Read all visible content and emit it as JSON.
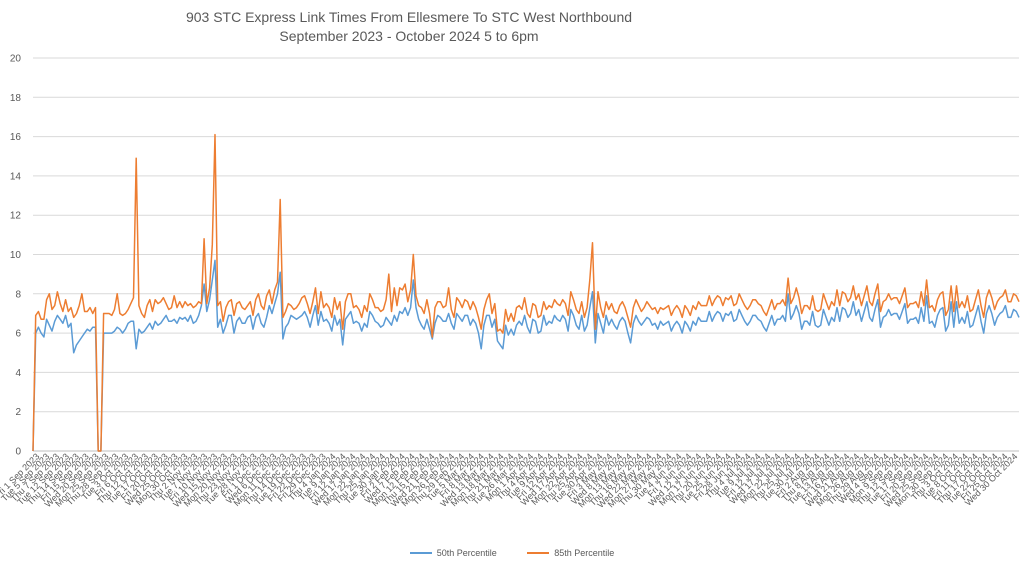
{
  "chart_data": {
    "type": "line",
    "title": "903 STC Express Link Times From Ellesmere To STC West Northbound",
    "subtitle": "September 2023 - October 2024 5 to 6pm",
    "xlabel": "",
    "ylabel": "",
    "ylim": [
      0,
      20
    ],
    "yticks": [
      0,
      2,
      4,
      6,
      8,
      10,
      12,
      14,
      16,
      18,
      20
    ],
    "grid": true,
    "legend_position": "bottom",
    "x_tick_labels": [
      "Fri 1 Sep 2023",
      "Tue 5 Sep 2023",
      "Thu 7 Sep 2023",
      "Tue 12 Sep 2023",
      "Thu 14 Sep 2023",
      "Fri 15 Sep 2023",
      "Wed 20 Sep 2023",
      "Mon 25 Sep 2023",
      "Thu 28 Sep 2023",
      "Tue 3 Oct 2023",
      "Fri 6 Oct 2023",
      "Thu 12 Oct 2023",
      "Tue 17 Oct 2023",
      "Fri 20 Oct 2023",
      "Wed 25 Oct 2023",
      "Mon 30 Oct 2023",
      "Thu 2 Nov 2023",
      "Tue 7 Nov 2023",
      "Fri 10 Nov 2023",
      "Wed 15 Nov 2023",
      "Mon 20 Nov 2023",
      "Thu 23 Nov 2023",
      "Tue 28 Nov 2023",
      "Fri 1 Dec 2023",
      "Wed 6 Dec 2023",
      "Mon 11 Dec 2023",
      "Thu 14 Dec 2023",
      "Tue 19 Dec 2023",
      "Fri 22 Dec 2023",
      "Fri 29 Dec 2023",
      "Thu 4 Jan 2024",
      "Tue 9 Jan 2024",
      "Fri 12 Jan 2024",
      "Wed 17 Jan 2024",
      "Mon 22 Jan 2024",
      "Thu 25 Jan 2024",
      "Tue 30 Jan 2024",
      "Fri 2 Feb 2024",
      "Wed 7 Feb 2024",
      "Mon 12 Feb 2024",
      "Thu 15 Feb 2024",
      "Wed 21 Feb 2024",
      "Mon 26 Feb 2024",
      "Thu 29 Feb 2024",
      "Tue 5 Mar 2024",
      "Fri 8 Mar 2024",
      "Wed 13 Mar 2024",
      "Mon 18 Mar 2024",
      "Thu 21 Mar 2024",
      "Tue 26 Mar 2024",
      "Mon 1 Apr 2024",
      "Thu 4 Apr 2024",
      "Tue 9 Apr 2024",
      "Fri 12 Apr 2024",
      "Wed 17 Apr 2024",
      "Mon 22 Apr 2024",
      "Thu 25 Apr 2024",
      "Tue 30 Apr 2024",
      "Fri 3 May 2024",
      "Wed 8 May 2024",
      "Mon 13 May 2024",
      "Thu 16 May 2024",
      "Wed 22 May 2024",
      "Mon 27 May 2024",
      "Thu 30 May 2024",
      "Tue 4 Jun 2024",
      "Fri 7 Jun 2024",
      "Wed 12 Jun 2024",
      "Mon 17 Jun 2024",
      "Thu 20 Jun 2024",
      "Tue 25 Jun 2024",
      "Fri 28 Jun 2024",
      "Thu 4 Jul 2024",
      "Tue 9 Jul 2024",
      "Fri 12 Jul 2024",
      "Wed 17 Jul 2024",
      "Mon 22 Jul 2024",
      "Thu 25 Jul 2024",
      "Tue 30 Jul 2024",
      "Fri 2 Aug 2024",
      "Thu 8 Aug 2024",
      "Tue 13 Aug 2024",
      "Fri 16 Aug 2024",
      "Wed 21 Aug 2024",
      "Mon 26 Aug 2024",
      "Thu 29 Aug 2024",
      "Wed 4 Sep 2024",
      "Mon 9 Sep 2024",
      "Thu 12 Sep 2024",
      "Tue 17 Sep 2024",
      "Fri 20 Sep 2024",
      "Wed 25 Sep 2024",
      "Mon 30 Sep 2024",
      "Thu 3 Oct 2024",
      "Tue 8 Oct 2024",
      "Fri 11 Oct 2024",
      "Thu 17 Oct 2024",
      "Tue 22 Oct 2024",
      "Fri 25 Oct 2024",
      "Wed 30 Oct 2024"
    ],
    "series": [
      {
        "name": "50th Percentile",
        "color": "#5B9BD5",
        "values": [
          0,
          6.0,
          6.3,
          6.0,
          5.8,
          6.7,
          6.4,
          6.1,
          6.6,
          6.9,
          6.7,
          6.5,
          6.9,
          6.3,
          6.5,
          5.0,
          5.4,
          5.6,
          5.8,
          6.0,
          6.2,
          6.1,
          6.3,
          6.3,
          0,
          0,
          6.0,
          6.0,
          6.0,
          6.0,
          6.1,
          6.3,
          6.2,
          6.0,
          6.2,
          6.5,
          6.6,
          6.6,
          5.2,
          6.2,
          6.0,
          6.1,
          6.3,
          6.5,
          6.2,
          6.6,
          6.4,
          6.5,
          6.7,
          6.9,
          6.6,
          6.6,
          6.7,
          6.5,
          6.8,
          6.7,
          6.8,
          6.6,
          6.9,
          6.5,
          6.6,
          6.9,
          7.4,
          8.5,
          7.1,
          7.7,
          8.7,
          9.7,
          6.3,
          6.7,
          6.0,
          6.4,
          6.9,
          6.9,
          6.0,
          6.6,
          6.8,
          6.5,
          6.5,
          6.8,
          6.9,
          6.2,
          6.8,
          7.0,
          6.5,
          6.3,
          6.8,
          7.4,
          7.0,
          7.5,
          8.0,
          9.1,
          5.7,
          6.3,
          6.5,
          6.9,
          6.8,
          6.7,
          6.8,
          6.9,
          7.1,
          6.8,
          6.3,
          6.9,
          7.4,
          6.4,
          7.1,
          6.6,
          6.7,
          6.5,
          6.1,
          6.9,
          6.4,
          6.7,
          5.4,
          6.7,
          6.9,
          7.1,
          6.5,
          6.6,
          6.5,
          6.1,
          6.5,
          6.3,
          7.1,
          6.9,
          6.6,
          6.5,
          6.3,
          6.4,
          6.8,
          6.6,
          6.4,
          6.9,
          6.6,
          7.1,
          7.0,
          7.3,
          6.9,
          7.3,
          8.7,
          7.3,
          6.7,
          6.4,
          6.2,
          6.7,
          6.2,
          5.7,
          6.5,
          6.9,
          6.8,
          6.6,
          6.6,
          7.0,
          6.5,
          6.2,
          7.0,
          6.8,
          6.6,
          6.9,
          6.9,
          6.4,
          6.7,
          6.5,
          6.0,
          5.2,
          6.4,
          6.9,
          6.9,
          6.3,
          6.7,
          5.6,
          5.4,
          5.2,
          6.4,
          5.9,
          6.2,
          5.9,
          6.4,
          6.6,
          6.4,
          6.9,
          6.3,
          6.0,
          6.7,
          6.6,
          6.0,
          6.1,
          6.9,
          6.4,
          6.6,
          6.5,
          6.9,
          6.7,
          6.6,
          6.9,
          6.7,
          6.1,
          7.2,
          6.9,
          6.4,
          6.2,
          6.9,
          6.1,
          6.4,
          7.3,
          8.1,
          5.5,
          7.0,
          6.5,
          6.0,
          6.9,
          6.4,
          6.7,
          6.4,
          6.2,
          6.6,
          6.8,
          6.6,
          6.0,
          5.5,
          6.5,
          6.9,
          6.6,
          6.4,
          6.6,
          6.8,
          6.7,
          6.4,
          6.5,
          6.2,
          6.6,
          6.4,
          6.5,
          6.6,
          6.1,
          6.4,
          6.6,
          6.4,
          6.0,
          6.6,
          6.4,
          6.1,
          6.6,
          6.4,
          6.8,
          6.6,
          6.6,
          6.6,
          7.1,
          6.6,
          6.9,
          7.1,
          7.0,
          6.6,
          7.0,
          6.9,
          7.1,
          6.6,
          6.7,
          7.2,
          6.9,
          6.6,
          6.4,
          6.6,
          6.9,
          6.9,
          6.7,
          6.6,
          6.3,
          6.1,
          6.5,
          6.9,
          6.4,
          6.7,
          6.7,
          6.9,
          6.6,
          8.0,
          6.7,
          7.0,
          7.4,
          7.0,
          6.2,
          6.6,
          6.6,
          6.4,
          7.1,
          6.4,
          6.3,
          6.4,
          7.2,
          6.8,
          6.4,
          6.8,
          6.6,
          7.3,
          6.6,
          7.3,
          7.2,
          6.8,
          7.0,
          7.6,
          6.9,
          7.2,
          6.6,
          7.1,
          7.6,
          6.8,
          6.6,
          7.2,
          7.7,
          6.3,
          6.8,
          6.9,
          7.2,
          6.9,
          7.0,
          7.0,
          6.7,
          7.1,
          7.5,
          6.5,
          6.7,
          6.7,
          6.8,
          6.5,
          7.3,
          6.6,
          7.9,
          6.5,
          6.6,
          6.3,
          6.9,
          7.2,
          7.3,
          6.1,
          6.4,
          7.6,
          6.3,
          7.6,
          6.5,
          6.8,
          6.5,
          7.1,
          6.3,
          6.4,
          6.9,
          7.4,
          6.6,
          6.0,
          7.0,
          7.4,
          7.0,
          6.4,
          6.8,
          7.0,
          7.1,
          7.4,
          6.8,
          6.8,
          7.2,
          7.1,
          6.8
        ]
      },
      {
        "name": "85th Percentile",
        "color": "#ED7D31",
        "values": [
          0,
          6.9,
          7.1,
          6.7,
          6.7,
          7.7,
          8.0,
          7.2,
          7.4,
          8.1,
          7.5,
          7.1,
          7.7,
          7.1,
          7.3,
          6.8,
          7.0,
          7.4,
          8.0,
          7.1,
          7.1,
          7.3,
          7.0,
          7.3,
          0,
          0,
          7.0,
          7.0,
          7.0,
          6.9,
          7.2,
          8.0,
          7.0,
          6.9,
          7.0,
          7.2,
          7.5,
          7.8,
          14.9,
          7.4,
          7.0,
          6.8,
          7.4,
          7.7,
          7.1,
          7.7,
          7.5,
          7.6,
          7.8,
          7.5,
          7.2,
          7.3,
          7.9,
          7.3,
          7.6,
          7.3,
          7.6,
          7.4,
          7.5,
          7.3,
          7.4,
          7.6,
          7.5,
          10.8,
          7.5,
          8.3,
          10.5,
          16.1,
          7.4,
          7.6,
          6.6,
          7.3,
          7.6,
          7.7,
          6.9,
          7.5,
          7.6,
          7.3,
          7.2,
          7.4,
          7.6,
          6.9,
          7.7,
          8.0,
          7.4,
          7.2,
          7.9,
          8.2,
          7.5,
          8.2,
          8.6,
          12.8,
          6.8,
          7.1,
          7.5,
          7.4,
          7.2,
          7.3,
          7.5,
          7.8,
          7.9,
          7.5,
          7.0,
          7.6,
          8.3,
          7.0,
          8.1,
          7.3,
          7.5,
          7.3,
          6.8,
          7.8,
          7.2,
          7.6,
          6.2,
          7.6,
          8.0,
          8.0,
          7.3,
          7.4,
          7.2,
          6.8,
          7.4,
          7.1,
          8.0,
          7.7,
          7.3,
          7.3,
          7.1,
          7.2,
          7.7,
          9.0,
          7.1,
          8.3,
          7.4,
          8.3,
          8.2,
          8.5,
          7.6,
          8.2,
          10.0,
          7.9,
          7.4,
          7.3,
          7.0,
          7.7,
          7.0,
          5.8,
          7.3,
          7.6,
          7.6,
          7.3,
          7.4,
          8.3,
          7.2,
          6.8,
          7.8,
          7.6,
          7.3,
          7.7,
          7.6,
          7.2,
          7.6,
          7.3,
          6.8,
          6.2,
          7.2,
          7.7,
          8.0,
          7.0,
          7.5,
          6.1,
          6.2,
          6.0,
          7.2,
          6.6,
          7.0,
          6.6,
          7.3,
          7.4,
          7.2,
          7.8,
          7.0,
          6.8,
          7.5,
          7.4,
          6.8,
          6.9,
          7.6,
          7.2,
          7.4,
          7.3,
          7.7,
          7.5,
          7.4,
          7.7,
          7.5,
          6.9,
          8.1,
          7.7,
          7.2,
          7.0,
          7.6,
          6.8,
          7.3,
          8.7,
          10.6,
          6.2,
          8.1,
          7.3,
          6.8,
          7.6,
          7.2,
          7.5,
          7.1,
          7.0,
          7.4,
          7.6,
          7.3,
          6.8,
          6.3,
          7.3,
          7.7,
          7.4,
          7.1,
          7.3,
          7.6,
          7.4,
          7.2,
          7.3,
          7.0,
          7.3,
          7.2,
          7.3,
          7.4,
          6.9,
          7.2,
          7.4,
          7.2,
          6.8,
          7.4,
          7.2,
          6.9,
          7.4,
          7.2,
          7.6,
          7.4,
          7.4,
          7.4,
          7.9,
          7.4,
          7.7,
          7.9,
          7.8,
          7.4,
          7.8,
          7.7,
          7.9,
          7.4,
          7.5,
          8.0,
          7.7,
          7.4,
          7.2,
          7.4,
          7.7,
          7.7,
          7.5,
          7.4,
          7.1,
          6.9,
          7.3,
          7.7,
          7.2,
          7.5,
          7.5,
          7.7,
          7.4,
          8.8,
          7.5,
          7.8,
          8.3,
          7.8,
          7.0,
          7.4,
          7.4,
          7.2,
          7.9,
          7.2,
          7.1,
          7.2,
          8.0,
          7.6,
          7.2,
          7.6,
          7.4,
          8.2,
          7.4,
          8.1,
          8.0,
          7.6,
          7.8,
          8.4,
          7.7,
          8.0,
          7.4,
          7.9,
          8.4,
          7.6,
          7.4,
          8.0,
          8.5,
          7.1,
          7.6,
          7.7,
          8.0,
          7.7,
          7.8,
          7.8,
          7.5,
          7.9,
          8.3,
          7.3,
          7.5,
          7.5,
          7.6,
          7.3,
          8.1,
          7.4,
          8.7,
          7.3,
          7.4,
          7.1,
          7.7,
          8.0,
          8.1,
          6.9,
          7.2,
          8.4,
          7.1,
          8.4,
          7.3,
          7.6,
          7.3,
          7.9,
          7.1,
          7.2,
          7.7,
          8.2,
          7.4,
          6.8,
          7.8,
          8.2,
          7.8,
          7.2,
          7.6,
          7.8,
          7.9,
          8.2,
          7.6,
          7.6,
          8.0,
          7.9,
          7.6
        ]
      }
    ]
  }
}
